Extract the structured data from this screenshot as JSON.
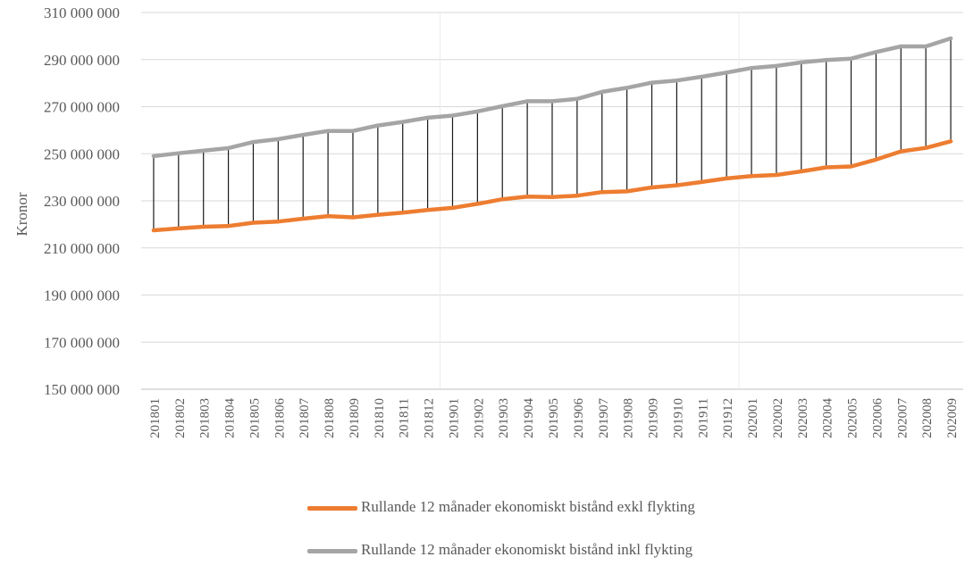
{
  "chart_data": {
    "type": "line",
    "title": "",
    "xlabel": "",
    "ylabel": "Kronor",
    "ylim": [
      150000000,
      310000000
    ],
    "yticks": [
      "150 000 000",
      "170 000 000",
      "190 000 000",
      "210 000 000",
      "230 000 000",
      "250 000 000",
      "270 000 000",
      "290 000 000",
      "310 000 000"
    ],
    "grid": true,
    "hi_lo_lines": true,
    "legend_position": "bottom",
    "categories": [
      "201801",
      "201802",
      "201803",
      "201804",
      "201805",
      "201806",
      "201807",
      "201808",
      "201809",
      "201810",
      "201811",
      "201812",
      "201901",
      "201902",
      "201903",
      "201904",
      "201905",
      "201906",
      "201907",
      "201908",
      "201909",
      "201910",
      "201911",
      "201912",
      "202001",
      "202002",
      "202003",
      "202004",
      "202005",
      "202006",
      "202007",
      "202008",
      "202009"
    ],
    "series": [
      {
        "name": "Rullande 12 månader ekonomiskt bistånd exkl flykting",
        "color": "#ED7D31",
        "values": [
          217500000,
          218300000,
          219000000,
          219300000,
          220700000,
          221200000,
          222400000,
          223500000,
          223000000,
          224100000,
          225000000,
          226100000,
          227000000,
          228700000,
          230700000,
          231800000,
          231600000,
          232200000,
          233700000,
          234000000,
          235700000,
          236600000,
          238000000,
          239500000,
          240500000,
          241000000,
          242500000,
          244200000,
          244600000,
          247500000,
          251000000,
          252500000,
          255300000
        ]
      },
      {
        "name": "Rullande 12 månader ekonomiskt bistånd inkl flykting",
        "color": "#A5A5A5",
        "values": [
          249000000,
          250200000,
          251300000,
          252400000,
          255000000,
          256200000,
          258000000,
          259700000,
          259700000,
          262000000,
          263500000,
          265300000,
          266200000,
          268000000,
          270200000,
          272300000,
          272300000,
          273300000,
          276300000,
          278000000,
          280200000,
          281100000,
          282700000,
          284500000,
          286400000,
          287300000,
          288800000,
          289800000,
          290400000,
          293200000,
          295600000,
          295600000,
          299000000
        ]
      }
    ]
  }
}
